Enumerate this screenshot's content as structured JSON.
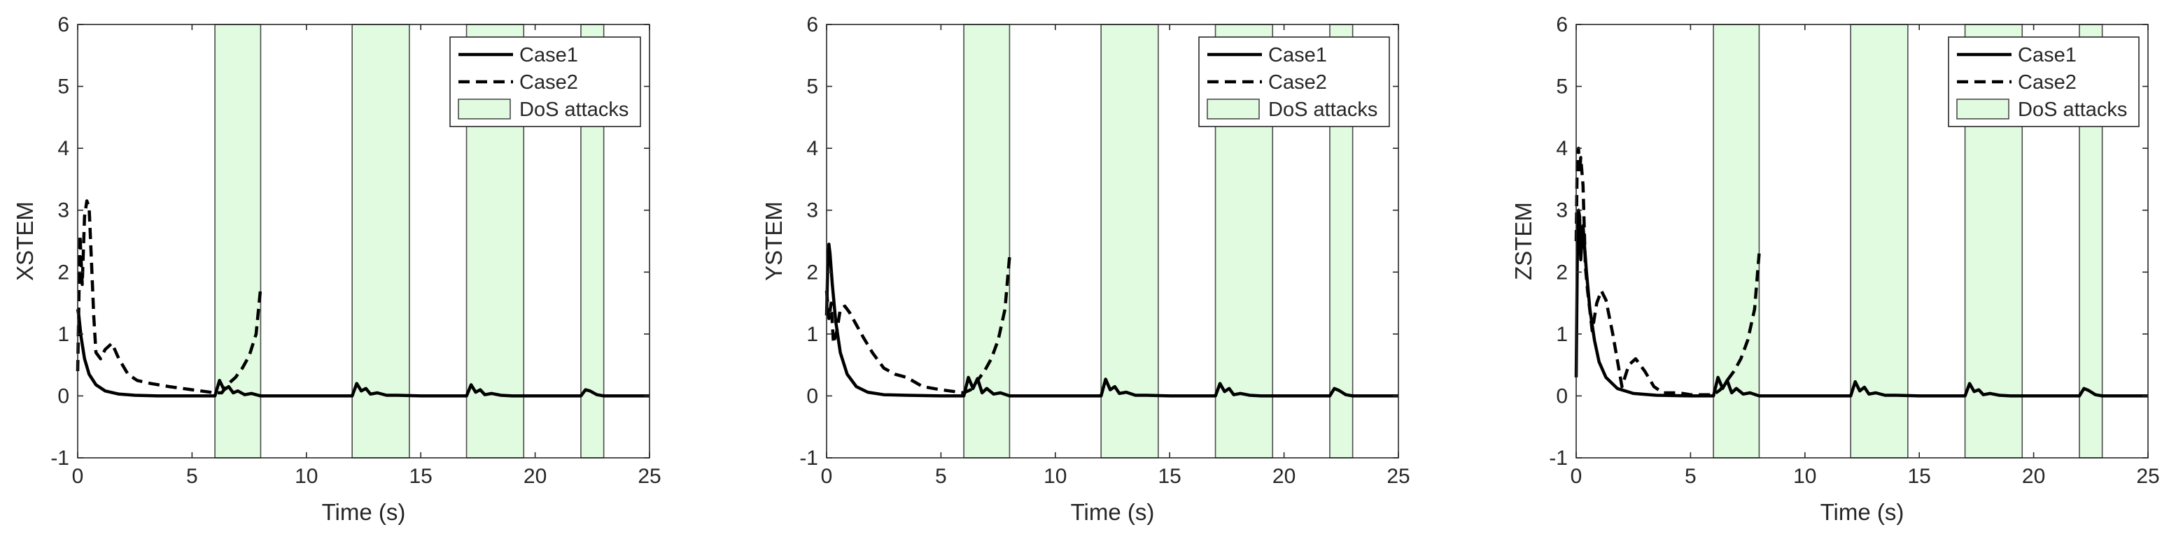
{
  "chart_data": [
    {
      "type": "line",
      "title": "",
      "xlabel": "Time (s)",
      "ylabel": "XSTEM",
      "xlim": [
        0,
        25
      ],
      "ylim": [
        -1,
        6
      ],
      "xticks": [
        "0",
        "5",
        "10",
        "15",
        "20",
        "25"
      ],
      "yticks": [
        "-1",
        "0",
        "1",
        "2",
        "3",
        "4",
        "5",
        "6"
      ],
      "grid": false,
      "legend_position": "top-right",
      "legend": [
        "Case1",
        "Case2",
        "DoS attacks"
      ],
      "shaded_regions": [
        [
          6,
          8
        ],
        [
          12,
          14.5
        ],
        [
          17,
          19.5
        ],
        [
          22,
          23
        ]
      ],
      "series": [
        {
          "name": "Case1",
          "style": "solid",
          "x": [
            0,
            0.05,
            0.15,
            0.3,
            0.5,
            0.8,
            1.2,
            1.8,
            2.5,
            3.5,
            5,
            6,
            6.2,
            6.4,
            6.6,
            6.8,
            7.0,
            7.3,
            7.6,
            8,
            9,
            12,
            12.2,
            12.4,
            12.6,
            12.8,
            13.1,
            13.5,
            14,
            15,
            17,
            17.2,
            17.4,
            17.6,
            17.8,
            18.1,
            18.5,
            19,
            20,
            22,
            22.2,
            22.4,
            22.7,
            23,
            25
          ],
          "y": [
            1.4,
            1.3,
            0.95,
            0.6,
            0.35,
            0.18,
            0.08,
            0.03,
            0.01,
            0,
            0,
            0,
            0.25,
            0.1,
            0.15,
            0.05,
            0.08,
            0.02,
            0.04,
            0,
            0,
            0,
            0.2,
            0.08,
            0.12,
            0.03,
            0.05,
            0.01,
            0.01,
            0,
            0,
            0.18,
            0.06,
            0.1,
            0.02,
            0.04,
            0.01,
            0,
            0,
            0,
            0.1,
            0.08,
            0.02,
            0,
            0
          ]
        },
        {
          "name": "Case2",
          "style": "dashed",
          "x": [
            0,
            0.1,
            0.2,
            0.3,
            0.4,
            0.5,
            0.6,
            0.7,
            0.8,
            1.0,
            1.2,
            1.5,
            1.8,
            2.2,
            2.6,
            3.2,
            4,
            5,
            6,
            6.3,
            6.6,
            6.9,
            7.2,
            7.5,
            7.8,
            8
          ],
          "y": [
            0.4,
            2.6,
            1.8,
            2.9,
            3.15,
            3.05,
            2.2,
            1.3,
            0.7,
            0.6,
            0.75,
            0.85,
            0.6,
            0.35,
            0.25,
            0.2,
            0.15,
            0.1,
            0.05,
            0.05,
            0.2,
            0.3,
            0.45,
            0.65,
            1.0,
            1.75
          ]
        }
      ]
    },
    {
      "type": "line",
      "title": "",
      "xlabel": "Time (s)",
      "ylabel": "YSTEM",
      "xlim": [
        0,
        25
      ],
      "ylim": [
        -1,
        6
      ],
      "xticks": [
        "0",
        "5",
        "10",
        "15",
        "20",
        "25"
      ],
      "yticks": [
        "-1",
        "0",
        "1",
        "2",
        "3",
        "4",
        "5",
        "6"
      ],
      "grid": false,
      "legend_position": "top-right",
      "legend": [
        "Case1",
        "Case2",
        "DoS attacks"
      ],
      "shaded_regions": [
        [
          6,
          8
        ],
        [
          12,
          14.5
        ],
        [
          17,
          19.5
        ],
        [
          22,
          23
        ]
      ],
      "series": [
        {
          "name": "Case1",
          "style": "solid",
          "x": [
            0,
            0.05,
            0.1,
            0.15,
            0.25,
            0.4,
            0.6,
            0.9,
            1.3,
            1.8,
            2.5,
            3.5,
            5,
            6,
            6.2,
            6.4,
            6.6,
            6.8,
            7.0,
            7.3,
            7.6,
            8,
            9,
            12,
            12.2,
            12.4,
            12.6,
            12.8,
            13.1,
            13.5,
            14,
            15,
            17,
            17.2,
            17.4,
            17.6,
            17.8,
            18.1,
            18.5,
            19,
            20,
            22,
            22.2,
            22.4,
            22.7,
            23,
            25
          ],
          "y": [
            1.3,
            2.1,
            2.45,
            2.3,
            1.8,
            1.2,
            0.7,
            0.35,
            0.15,
            0.06,
            0.02,
            0.01,
            0,
            0,
            0.3,
            0.12,
            0.28,
            0.05,
            0.12,
            0.03,
            0.05,
            0,
            0,
            0,
            0.27,
            0.1,
            0.15,
            0.04,
            0.06,
            0.01,
            0.01,
            0,
            0,
            0.2,
            0.07,
            0.12,
            0.02,
            0.04,
            0.01,
            0,
            0,
            0,
            0.12,
            0.09,
            0.02,
            0,
            0
          ]
        },
        {
          "name": "Case2",
          "style": "dashed",
          "x": [
            0,
            0.1,
            0.2,
            0.3,
            0.45,
            0.6,
            0.8,
            1.0,
            1.3,
            1.6,
            2.0,
            2.5,
            3.0,
            3.5,
            4.2,
            5,
            6,
            6.3,
            6.6,
            6.9,
            7.2,
            7.5,
            7.8,
            8
          ],
          "y": [
            1.7,
            1.25,
            1.5,
            0.85,
            1.05,
            1.4,
            1.45,
            1.35,
            1.15,
            0.95,
            0.7,
            0.45,
            0.35,
            0.3,
            0.15,
            0.1,
            0.05,
            0.1,
            0.25,
            0.4,
            0.6,
            0.9,
            1.4,
            2.25
          ]
        }
      ]
    },
    {
      "type": "line",
      "title": "",
      "xlabel": "Time (s)",
      "ylabel": "ZSTEM",
      "xlim": [
        0,
        25
      ],
      "ylim": [
        -1,
        6
      ],
      "xticks": [
        "0",
        "5",
        "10",
        "15",
        "20",
        "25"
      ],
      "yticks": [
        "-1",
        "0",
        "1",
        "2",
        "3",
        "4",
        "5",
        "6"
      ],
      "grid": false,
      "legend_position": "top-right",
      "legend": [
        "Case1",
        "Case2",
        "DoS attacks"
      ],
      "shaded_regions": [
        [
          6,
          8
        ],
        [
          12,
          14.5
        ],
        [
          17,
          19.5
        ],
        [
          22,
          23
        ]
      ],
      "series": [
        {
          "name": "Case1",
          "style": "solid",
          "x": [
            0,
            0.05,
            0.1,
            0.15,
            0.2,
            0.3,
            0.45,
            0.6,
            0.8,
            1.0,
            1.3,
            1.8,
            2.5,
            3.5,
            5,
            6,
            6.2,
            6.4,
            6.6,
            6.8,
            7.0,
            7.3,
            7.6,
            8,
            9,
            12,
            12.2,
            12.4,
            12.6,
            12.8,
            13.1,
            13.5,
            14,
            15,
            17,
            17.2,
            17.4,
            17.6,
            17.8,
            18.1,
            18.5,
            19,
            20,
            22,
            22.2,
            22.4,
            22.7,
            23,
            25
          ],
          "y": [
            0.3,
            2.2,
            3.0,
            2.9,
            2.2,
            2.75,
            2.0,
            1.4,
            0.9,
            0.55,
            0.3,
            0.12,
            0.04,
            0.01,
            0,
            0,
            0.3,
            0.12,
            0.25,
            0.05,
            0.12,
            0.03,
            0.05,
            0,
            0,
            0,
            0.23,
            0.08,
            0.14,
            0.03,
            0.05,
            0.01,
            0.01,
            0,
            0,
            0.2,
            0.07,
            0.1,
            0.02,
            0.04,
            0.01,
            0,
            0,
            0,
            0.12,
            0.09,
            0.02,
            0,
            0
          ]
        },
        {
          "name": "Case2",
          "style": "dashed",
          "x": [
            0,
            0.05,
            0.1,
            0.15,
            0.2,
            0.3,
            0.4,
            0.5,
            0.7,
            0.9,
            1.1,
            1.3,
            1.6,
            2.0,
            2.3,
            2.6,
            3.0,
            3.4,
            3.8,
            4.5,
            5,
            6,
            6.3,
            6.6,
            6.9,
            7.2,
            7.5,
            7.8,
            8
          ],
          "y": [
            2.5,
            3.9,
            4.0,
            3.6,
            3.85,
            3.4,
            2.1,
            1.7,
            1.05,
            1.5,
            1.7,
            1.55,
            1.0,
            0.15,
            0.5,
            0.6,
            0.4,
            0.15,
            0.05,
            0.05,
            0.02,
            0.02,
            0.1,
            0.25,
            0.4,
            0.6,
            0.9,
            1.4,
            2.3
          ]
        }
      ]
    }
  ]
}
